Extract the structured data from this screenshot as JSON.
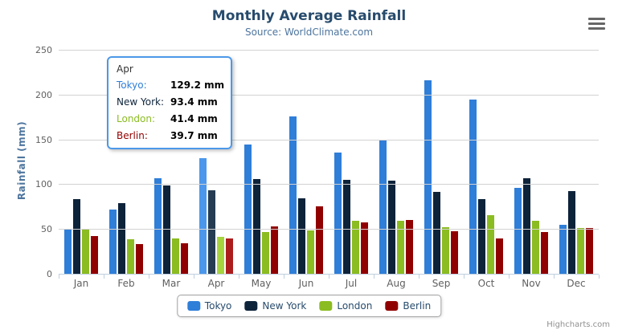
{
  "header": {
    "title": "Monthly Average Rainfall",
    "subtitle": "Source: WorldClimate.com"
  },
  "icons": {
    "export_menu": "hamburger-menu"
  },
  "chart_data": {
    "type": "bar",
    "title": "Monthly Average Rainfall",
    "subtitle": "Source: WorldClimate.com",
    "categories": [
      "Jan",
      "Feb",
      "Mar",
      "Apr",
      "May",
      "Jun",
      "Jul",
      "Aug",
      "Sep",
      "Oct",
      "Nov",
      "Dec"
    ],
    "series": [
      {
        "name": "Tokyo",
        "color": "#2f7ed8",
        "hover_color": "#4b97ec",
        "values": [
          49.9,
          71.5,
          106.4,
          129.2,
          144.0,
          176.0,
          135.6,
          148.5,
          216.4,
          194.1,
          95.6,
          54.4
        ]
      },
      {
        "name": "New York",
        "color": "#0d233a",
        "hover_color": "#263c52",
        "values": [
          83.6,
          78.8,
          98.5,
          93.4,
          106.0,
          84.5,
          105.0,
          104.3,
          91.2,
          83.5,
          106.6,
          92.3
        ]
      },
      {
        "name": "London",
        "color": "#8bbc21",
        "hover_color": "#a6d43e",
        "values": [
          48.9,
          38.8,
          39.3,
          41.4,
          47.0,
          48.3,
          59.0,
          59.6,
          52.4,
          65.2,
          59.3,
          51.2
        ]
      },
      {
        "name": "Berlin",
        "color": "#910000",
        "hover_color": "#ad1c1c",
        "values": [
          42.4,
          33.2,
          34.5,
          39.7,
          52.6,
          75.5,
          57.4,
          60.4,
          47.6,
          39.1,
          46.8,
          51.1
        ]
      }
    ],
    "xlabel": "",
    "ylabel": "Rainfall (mm)",
    "ylim": [
      0,
      250
    ],
    "yticks": [
      0,
      50,
      100,
      150,
      200,
      250
    ],
    "grid": true,
    "legend_position": "bottom",
    "hovered_category": "Apr"
  },
  "tooltip": {
    "header": "Apr",
    "rows": [
      {
        "label": "Tokyo:",
        "value": "129.2 mm",
        "color": "#2f7ed8"
      },
      {
        "label": "New York:",
        "value": "93.4 mm",
        "color": "#0d233a"
      },
      {
        "label": "London:",
        "value": "41.4 mm",
        "color": "#8bbc21"
      },
      {
        "label": "Berlin:",
        "value": "39.7 mm",
        "color": "#910000"
      }
    ]
  },
  "credits": {
    "label": "Highcharts.com"
  }
}
